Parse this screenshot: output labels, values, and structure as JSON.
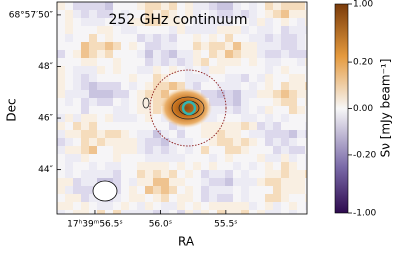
{
  "chart_data": {
    "type": "image",
    "title": "252 GHz continuum",
    "x_label": "RA",
    "y_label": "Dec",
    "xlim": [
      56.79,
      54.88
    ],
    "xticks": [
      {
        "value": 56.5,
        "label": "17ʰ39ᵐ56.5ˢ"
      },
      {
        "value": 56.0,
        "label": "56.0ˢ"
      },
      {
        "value": 55.5,
        "label": "55.5ˢ"
      }
    ],
    "ylim": [
      42.28,
      50.5
    ],
    "yticks": [
      {
        "value": 50,
        "label": "68°57′50″"
      },
      {
        "value": 48,
        "label": "48″"
      },
      {
        "value": 46,
        "label": "46″"
      },
      {
        "value": 44,
        "label": "44″"
      }
    ],
    "colorbar": {
      "label": "Sν [mJy beam⁻¹]",
      "scale": "asinh",
      "lim": [
        -1.0,
        1.0
      ],
      "ticks": [
        {
          "value": 1.0,
          "label": "1.00"
        },
        {
          "value": 0.2,
          "label": "0.20"
        },
        {
          "value": 0.0,
          "label": "0.00"
        },
        {
          "value": -0.2,
          "label": "-0.20"
        },
        {
          "value": -1.0,
          "label": "-1.00"
        }
      ]
    }
  }
}
